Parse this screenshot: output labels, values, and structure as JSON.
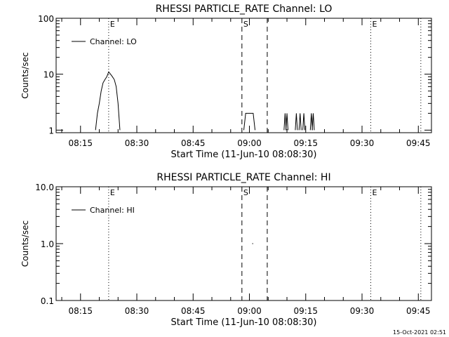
{
  "footer": {
    "timestamp": "15-Oct-2021 02:51"
  },
  "chart_data": [
    {
      "type": "line",
      "title": "RHESSI PARTICLE_RATE Channel: LO",
      "xlabel": "Start Time (11-Jun-10 08:08:30)",
      "ylabel": "Counts/sec",
      "yscale": "log",
      "ylim": [
        0.9,
        100
      ],
      "xlim": [
        "08:08:30",
        "09:48:30"
      ],
      "x_ticks": [
        "08:15",
        "08:30",
        "08:45",
        "09:00",
        "09:15",
        "09:30",
        "09:45"
      ],
      "y_ticks": [
        "1",
        "10",
        "100"
      ],
      "legend": {
        "position": "top-left",
        "entries": [
          "Channel: LO"
        ]
      },
      "grid": false,
      "markers": [
        {
          "time": "08:22:30",
          "style": "dotted",
          "label": "E"
        },
        {
          "time": "08:58:00",
          "style": "dashed",
          "label": "S"
        },
        {
          "time": "09:04:45",
          "style": "dashed",
          "label": ""
        },
        {
          "time": "09:32:20",
          "style": "dotted",
          "label": "E"
        },
        {
          "time": "09:45:40",
          "style": "dotted",
          "label": ""
        }
      ],
      "series": [
        {
          "name": "Channel: LO",
          "style": "histogram",
          "points": [
            [
              "08:19:00",
              1
            ],
            [
              "08:19:30",
              2
            ],
            [
              "08:20:00",
              3
            ],
            [
              "08:20:30",
              5
            ],
            [
              "08:21:00",
              7
            ],
            [
              "08:21:30",
              8
            ],
            [
              "08:22:00",
              9
            ],
            [
              "08:22:30",
              11
            ],
            [
              "08:23:00",
              10
            ],
            [
              "08:23:30",
              9
            ],
            [
              "08:24:00",
              8
            ],
            [
              "08:24:30",
              6
            ],
            [
              "08:25:00",
              3
            ],
            [
              "08:25:30",
              1
            ]
          ]
        },
        {
          "name": "",
          "style": "histogram",
          "points": [
            [
              "08:58:30",
              1
            ],
            [
              "08:59:00",
              2
            ],
            [
              "09:01:00",
              2
            ],
            [
              "09:01:30",
              1
            ]
          ]
        },
        {
          "name": "",
          "style": "spikes",
          "points": [
            [
              "09:09:30",
              2
            ],
            [
              "09:10:00",
              2
            ],
            [
              "09:12:30",
              2
            ],
            [
              "09:13:30",
              2
            ],
            [
              "09:14:30",
              2
            ],
            [
              "09:16:30",
              2
            ],
            [
              "09:17:00",
              2
            ]
          ]
        }
      ]
    },
    {
      "type": "line",
      "title": "RHESSI PARTICLE_RATE Channel: HI",
      "xlabel": "Start Time (11-Jun-10 08:08:30)",
      "ylabel": "Counts/sec",
      "yscale": "log",
      "ylim": [
        0.1,
        10
      ],
      "xlim": [
        "08:08:30",
        "09:48:30"
      ],
      "x_ticks": [
        "08:15",
        "08:30",
        "08:45",
        "09:00",
        "09:15",
        "09:30",
        "09:45"
      ],
      "y_ticks": [
        "0.1",
        "1.0",
        "10.0"
      ],
      "legend": {
        "position": "top-left",
        "entries": [
          "Channel: HI"
        ]
      },
      "grid": false,
      "markers": [
        {
          "time": "08:22:30",
          "style": "dotted",
          "label": "E"
        },
        {
          "time": "08:58:00",
          "style": "dashed",
          "label": "S"
        },
        {
          "time": "09:04:45",
          "style": "dashed",
          "label": ""
        },
        {
          "time": "09:32:20",
          "style": "dotted",
          "label": "E"
        },
        {
          "time": "09:45:40",
          "style": "dotted",
          "label": ""
        }
      ],
      "series": [
        {
          "name": "Channel: HI",
          "style": "histogram",
          "points": [
            [
              "09:00:45",
              1
            ],
            [
              "09:01:00",
              1
            ]
          ]
        }
      ]
    }
  ]
}
